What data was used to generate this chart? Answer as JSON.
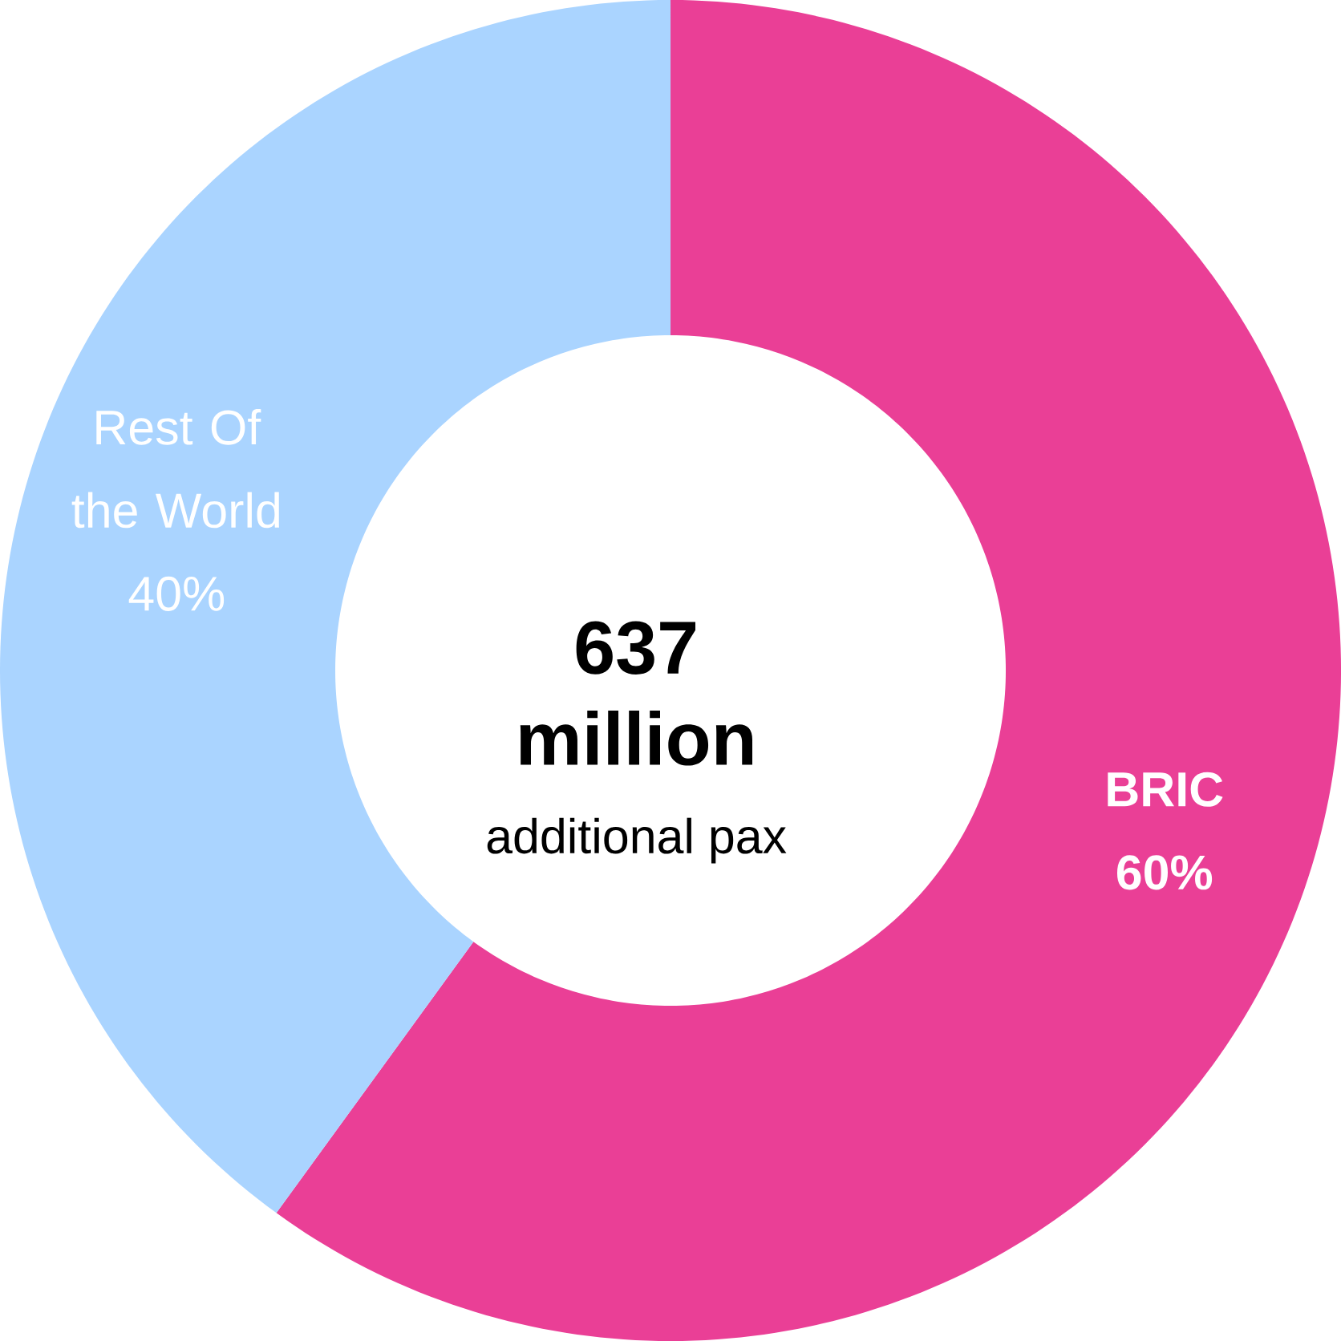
{
  "chart_data": {
    "type": "donut",
    "title": "637 million",
    "subtitle": "additional pax",
    "categories": [
      "BRIC",
      "Rest Of the World"
    ],
    "values": [
      60,
      40
    ],
    "colors": [
      "#ea3f96",
      "#aad4ff"
    ],
    "value_labels": [
      "60%",
      "40%"
    ]
  }
}
